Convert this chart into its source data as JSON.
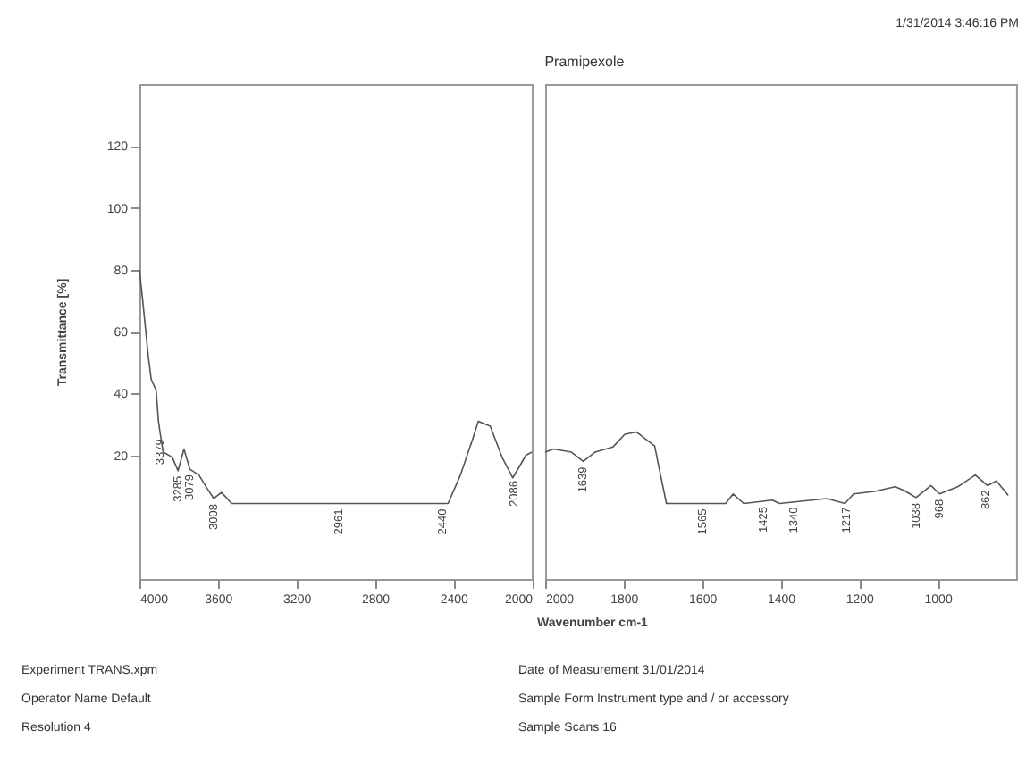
{
  "chart_data": [
    {
      "type": "line",
      "ylabel": "Transmittance [%]",
      "xlim": [
        4000,
        2000
      ],
      "ylim": [
        -20,
        140
      ],
      "xticks": [
        4000,
        3600,
        3200,
        2800,
        2400,
        2000
      ],
      "yticks": [
        20,
        40,
        60,
        80,
        100,
        120
      ],
      "grid": false,
      "x": [
        4000,
        3985,
        3955,
        3940,
        3915,
        3903,
        3894,
        3879,
        3833,
        3803,
        3773,
        3743,
        3697,
        3652,
        3621,
        3582,
        3530,
        2427,
        2364,
        2303,
        2273,
        2212,
        2152,
        2097,
        2030,
        2000
      ],
      "series": [
        {
          "color": "#555555",
          "values": [
            80,
            71,
            52,
            44.5,
            41,
            31,
            27,
            21,
            19.4,
            15,
            22,
            15.5,
            13.6,
            9,
            6,
            8,
            4.4,
            4.4,
            13.6,
            25,
            31,
            29.4,
            19.4,
            12.7,
            20,
            21
          ]
        }
      ],
      "annotations": [
        "1/31/2014  3:46:16 PM",
        "Experiment TRANS.xpm",
        "Operator Name Default",
        "Resolution 4",
        "Date of Measurement 31/01/2014",
        "Sample Form Instrument type and / or accessory",
        "Sample Scans 16",
        {
          "text": "3379",
          "x": 3894,
          "y": 27
        },
        {
          "text": "3285",
          "x": 3803,
          "y": 15
        },
        {
          "text": "3079",
          "x": 3743,
          "y": 15.5
        },
        {
          "text": "3008",
          "x": 3621,
          "y": 6
        },
        {
          "text": "2961",
          "x": 2982,
          "y": 4.4
        },
        {
          "text": "2440",
          "x": 2455,
          "y": 4.4
        },
        {
          "text": "2086",
          "x": 2091,
          "y": 13.5
        }
      ]
    },
    {
      "type": "line",
      "title": "Pramipexole",
      "xlabel": "Wavenumber cm-1",
      "xlim": [
        2000,
        800
      ],
      "ylim": [
        -20,
        140
      ],
      "tick_labels": "x",
      "xticks": [
        2000,
        1800,
        1600,
        1400,
        1200,
        1000
      ],
      "grid": false,
      "x": [
        2000,
        1979,
        1933,
        1903,
        1873,
        1827,
        1797,
        1767,
        1721,
        1706,
        1691,
        1540,
        1521,
        1494,
        1421,
        1403,
        1282,
        1236,
        1214,
        1161,
        1108,
        1085,
        1055,
        1017,
        995,
        949,
        904,
        873,
        850,
        820
      ],
      "series": [
        {
          "color": "#555555",
          "values": [
            21,
            22,
            21,
            18,
            21,
            22.7,
            26.8,
            27.5,
            23,
            13.6,
            4.4,
            4.4,
            7.5,
            4.4,
            5.5,
            4.4,
            6,
            4.4,
            7.5,
            8.3,
            9.8,
            8.6,
            6.3,
            10.2,
            7.5,
            9.8,
            13.6,
            10.2,
            11.7,
            7
          ]
        }
      ],
      "annotations": [
        {
          "text": "1639",
          "x": 1905,
          "y": 18
        },
        {
          "text": "1565",
          "x": 1600,
          "y": 4.4
        },
        {
          "text": "1425",
          "x": 1445,
          "y": 5.1
        },
        {
          "text": "1340",
          "x": 1368,
          "y": 5
        },
        {
          "text": "1217",
          "x": 1232,
          "y": 5
        },
        {
          "text": "1038",
          "x": 1055,
          "y": 6.3
        },
        {
          "text": "968",
          "x": 995,
          "y": 7.5
        },
        {
          "text": "862",
          "x": 877,
          "y": 10.5
        }
      ]
    }
  ]
}
